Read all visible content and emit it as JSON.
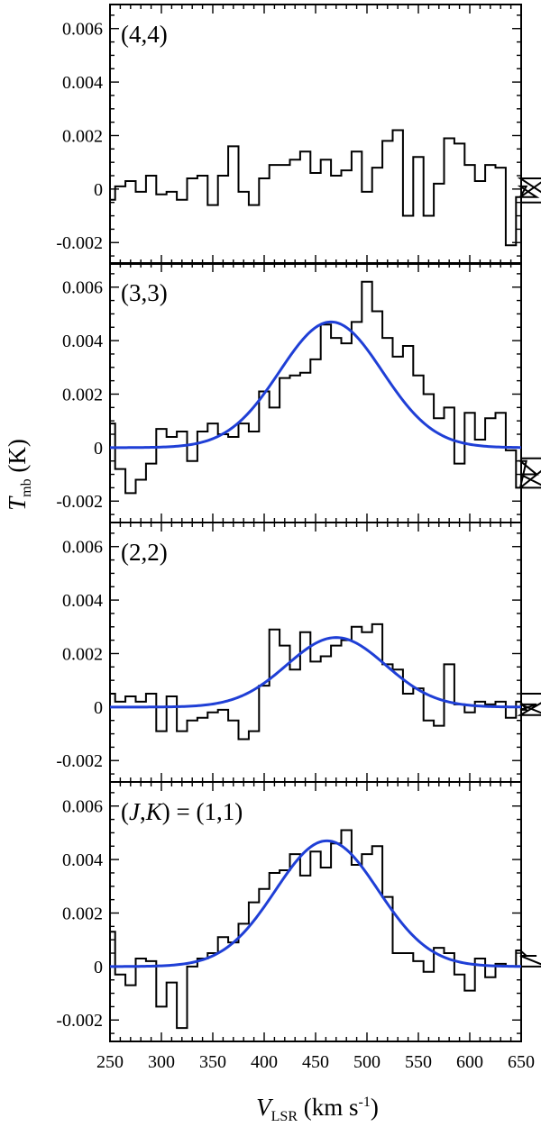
{
  "chart_data": {
    "type": "line",
    "xlabel": {
      "main": "V",
      "sub": "LSR",
      "unit": "(km s",
      "sup": "-1",
      "close": ")"
    },
    "ylabel": {
      "main": "T",
      "sub": "mb",
      "unit": "(K)"
    },
    "xlim": [
      250,
      650
    ],
    "ylim": [
      -0.0028,
      0.0069
    ],
    "xticks": [
      250,
      300,
      350,
      400,
      450,
      500,
      550,
      600,
      650
    ],
    "xtick_labels": [
      "250",
      "300",
      "350",
      "400",
      "450",
      "500",
      "550",
      "600",
      "650"
    ],
    "yticks": [
      -0.002,
      0,
      0.002,
      0.004,
      0.006
    ],
    "ytick_labels": [
      "-0.002",
      "0",
      "0.002",
      "0.004",
      "0.006"
    ],
    "bin_width": 10,
    "bin_start": 245,
    "colors": {
      "data": "#000000",
      "fit": "#1f3fd6"
    },
    "panels": [
      {
        "label": "(4,4)",
        "series": [
          {
            "name": "",
            "style": "step",
            "values": [
              -0.0004,
              0.0001,
              0.0003,
              -0.0001,
              0.0005,
              -0.0002,
              -0.0001,
              -0.0004,
              0.0004,
              0.0005,
              -0.0006,
              0.0005,
              0.0016,
              -0.0001,
              -0.0006,
              0.0004,
              0.0009,
              0.0009,
              0.0011,
              0.0014,
              0.0006,
              0.0011,
              0.0005,
              0.0007,
              0.0014,
              -0.0001,
              0.0008,
              0.0018,
              0.0022,
              -0.001,
              0.0012,
              -0.001,
              0.0002,
              0.0019,
              0.0017,
              0.0009,
              0.0003,
              0.0009,
              0.0008,
              -0.0021,
              -0.0003,
              0.0001,
              -0.0003,
              0.0004,
              -0.0005
            ]
          }
        ]
      },
      {
        "label": "(3,3)",
        "series": [
          {
            "name": "",
            "style": "step",
            "values": [
              0.0009,
              -0.0008,
              -0.0017,
              -0.0012,
              -0.0006,
              0.0007,
              0.0004,
              0.0006,
              -0.0005,
              0.0006,
              0.0009,
              0.0005,
              0.0004,
              0.0009,
              0.0006,
              0.0021,
              0.0015,
              0.0026,
              0.0027,
              0.0028,
              0.0033,
              0.0046,
              0.0041,
              0.0039,
              0.0047,
              0.0062,
              0.0051,
              0.0041,
              0.0034,
              0.0038,
              0.0027,
              0.002,
              0.0011,
              0.0015,
              -0.0006,
              0.0013,
              0.0003,
              0.0011,
              0.0013,
              -0.0001,
              -0.0015,
              -0.0005,
              -0.001,
              -0.0015,
              -0.0004
            ]
          },
          {
            "name": "",
            "style": "gaussian",
            "amp": 0.0047,
            "center": 465,
            "sigma": 50
          }
        ]
      },
      {
        "label": "(2,2)",
        "series": [
          {
            "name": "",
            "style": "step",
            "values": [
              0.0005,
              0.0002,
              0.0004,
              0.0002,
              0.0005,
              -0.0009,
              0.0004,
              -0.0009,
              -0.0005,
              -0.0004,
              -0.0002,
              -0.0001,
              -0.0005,
              -0.0012,
              -0.0009,
              0.0008,
              0.0029,
              0.0023,
              0.0014,
              0.0028,
              0.0017,
              0.0019,
              0.0023,
              0.0025,
              0.003,
              0.0028,
              0.0031,
              0.0016,
              0.0014,
              0.0005,
              0.0007,
              -0.0005,
              -0.0007,
              0.0016,
              0.0001,
              -0.0002,
              0.0002,
              0.0001,
              0.0002,
              -0.0004,
              0.0002,
              -0.0001,
              0.0001,
              -0.0003,
              0.0005
            ]
          },
          {
            "name": "",
            "style": "gaussian",
            "amp": 0.0026,
            "center": 470,
            "sigma": 48
          }
        ]
      },
      {
        "label": "(J,K) = (1,1)",
        "series": [
          {
            "name": "",
            "style": "step",
            "values": [
              0.0013,
              -0.0003,
              -0.0007,
              0.0003,
              0.0002,
              -0.0015,
              -0.0006,
              -0.0023,
              0.0,
              0.0003,
              0.0005,
              0.0011,
              0.0009,
              0.0016,
              0.0024,
              0.0029,
              0.0035,
              0.0036,
              0.0042,
              0.0034,
              0.0043,
              0.0037,
              0.0046,
              0.0051,
              0.0038,
              0.0042,
              0.0045,
              0.0026,
              0.0005,
              0.0005,
              0.0002,
              -0.0002,
              0.0007,
              0.0005,
              -0.0003,
              -0.0009,
              0.0003,
              -0.0004,
              0.0001,
              0.0,
              0.0006,
              0.0004,
              0.0004,
              0.0,
              0.0
            ]
          },
          {
            "name": "",
            "style": "gaussian",
            "amp": 0.0047,
            "center": 461,
            "sigma": 50
          }
        ]
      }
    ]
  }
}
